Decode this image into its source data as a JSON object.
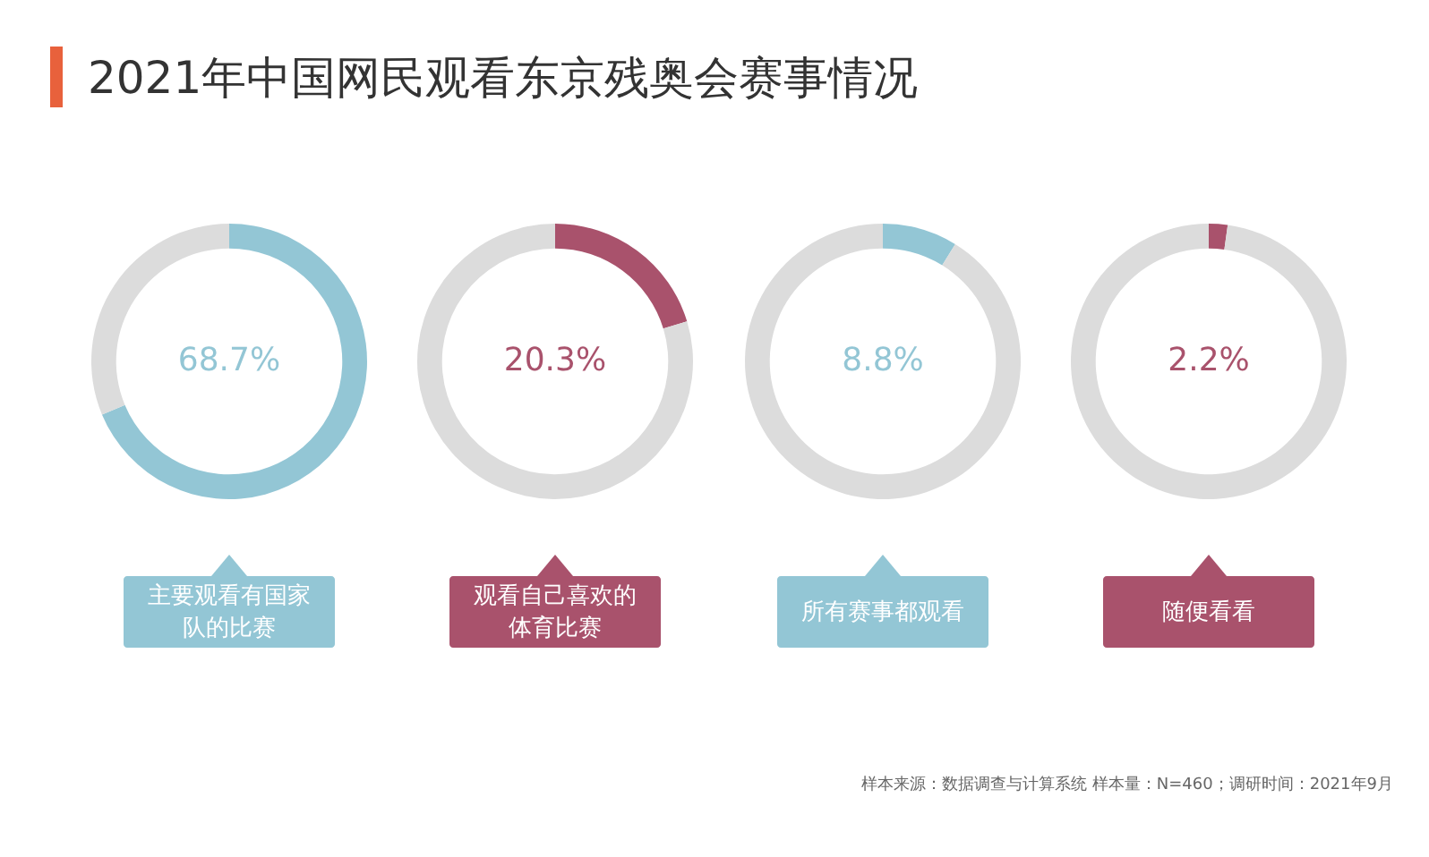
{
  "chart_data": [
    {
      "type": "donut",
      "title": "2021年中国网民观看东京残奥会赛事情况",
      "categories": [
        "主要观看有国家队的比赛",
        null
      ],
      "values": [
        68.7,
        31.3
      ],
      "colors": [
        "#93c6d5",
        "#dcdcdc"
      ],
      "value_labels": [
        "68.7%",
        null
      ]
    },
    {
      "type": "donut",
      "categories": [
        "观看自己喜欢的体育比赛",
        null
      ],
      "values": [
        20.3,
        79.7
      ],
      "colors": [
        "#a9526c",
        "#dcdcdc"
      ],
      "value_labels": [
        "20.3%",
        null
      ]
    },
    {
      "type": "donut",
      "categories": [
        "所有赛事都观看",
        null
      ],
      "values": [
        8.8,
        91.2
      ],
      "colors": [
        "#93c6d5",
        "#dcdcdc"
      ],
      "value_labels": [
        "8.8%",
        null
      ]
    },
    {
      "type": "donut",
      "categories": [
        "随便看看",
        null
      ],
      "values": [
        2.2,
        97.8
      ],
      "colors": [
        "#a9526c",
        "#dcdcdc"
      ],
      "value_labels": [
        "2.2%",
        null
      ],
      "annotations": [
        "样本来源：数据调查与计算系统 样本量：N=460；调研时间：2021年9月"
      ]
    }
  ]
}
